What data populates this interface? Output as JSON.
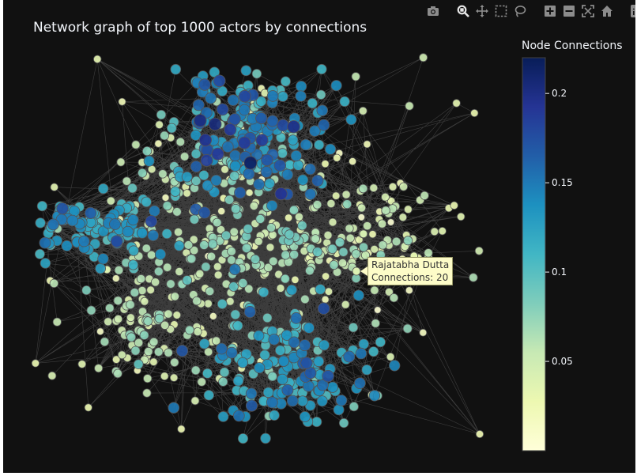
{
  "chart_data": {
    "type": "scatter",
    "title": "Network graph of top 1000 actors by connections",
    "grid": false,
    "background": "#111111",
    "node_count": 1000,
    "colorbar": {
      "title": "Node Connections",
      "ticks": [
        0.05,
        0.1,
        0.15,
        0.2
      ],
      "tick_labels": [
        "0.05",
        "0.1",
        "0.15",
        "0.2"
      ],
      "range": [
        0,
        0.22
      ],
      "colorscale": "YlGnBu",
      "colors": [
        "#ffffd9",
        "#edf8b1",
        "#c7e9b4",
        "#7fcdbb",
        "#41b6c4",
        "#1d91c0",
        "#225ea8",
        "#253494",
        "#081d58"
      ]
    },
    "hover": {
      "name": "Rajatabha Dutta",
      "connections_line": "Connections: 20"
    }
  },
  "modebar": {
    "buttons": [
      "camera-icon",
      "zoom-icon",
      "pan-icon",
      "box-select-icon",
      "lasso-icon",
      "zoom-in-icon",
      "zoom-out-icon",
      "autoscale-icon",
      "reset-axes-icon",
      "plotly-logo-icon"
    ],
    "color": "#8c8c8c"
  }
}
